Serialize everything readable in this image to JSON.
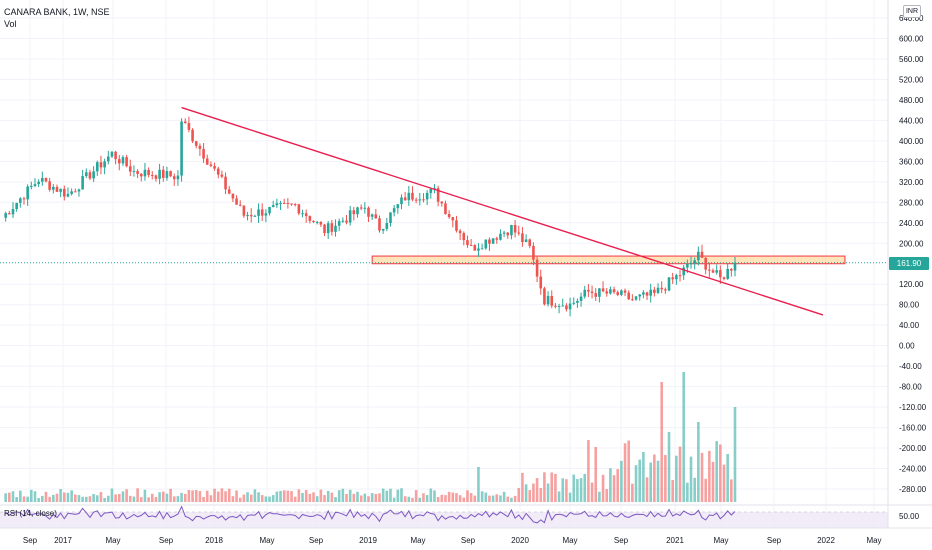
{
  "header": {
    "symbol_line": "CANARA BANK, 1W, NSE",
    "volume_label": "Vol"
  },
  "currency_badge": "INR",
  "current_price_label": "161.90",
  "rsi_label": "RSI (14, close)",
  "rsi_level_label": "50.00",
  "colors": {
    "up": "#26a69a",
    "down": "#ef5350",
    "trendline": "#e91e4d",
    "zone_fill": "#ffe0b2",
    "zone_border": "#f23645",
    "rsi_line": "#7e57c2",
    "rsi_band": "#ede7f6"
  },
  "chart_data": {
    "type": "candlestick",
    "title": "CANARA BANK, 1W, NSE",
    "x_tick_labels": [
      "Sep",
      "2017",
      "May",
      "Sep",
      "2018",
      "May",
      "Sep",
      "2019",
      "May",
      "Sep",
      "2020",
      "May",
      "Sep",
      "2021",
      "May",
      "Sep",
      "2022",
      "May"
    ],
    "y_tick_labels": [
      "640.00",
      "600.00",
      "560.00",
      "520.00",
      "480.00",
      "440.00",
      "400.00",
      "360.00",
      "320.00",
      "280.00",
      "240.00",
      "200.00",
      "120.00",
      "80.00",
      "40.00",
      "0.00",
      "-40.00",
      "-80.00",
      "-120.00",
      "-160.00",
      "-200.00",
      "-240.00",
      "-280.00"
    ],
    "y_tick_values": [
      640,
      600,
      560,
      520,
      480,
      440,
      400,
      360,
      320,
      280,
      240,
      200,
      120,
      80,
      40,
      0,
      -40,
      -80,
      -120,
      -160,
      -200,
      -240,
      -280
    ],
    "ylim": [
      -300,
      650
    ],
    "grid": true,
    "last_price": 161.9,
    "price_path_anchors": [
      {
        "week": 0,
        "close": 250
      },
      {
        "week": 10,
        "close": 325
      },
      {
        "week": 18,
        "close": 295
      },
      {
        "week": 30,
        "close": 375
      },
      {
        "week": 36,
        "close": 340
      },
      {
        "week": 48,
        "close": 330
      },
      {
        "week": 49,
        "close": 440
      },
      {
        "week": 60,
        "close": 320
      },
      {
        "week": 66,
        "close": 255
      },
      {
        "week": 80,
        "close": 275
      },
      {
        "week": 88,
        "close": 225
      },
      {
        "week": 99,
        "close": 270
      },
      {
        "week": 103,
        "close": 230
      },
      {
        "week": 110,
        "close": 290
      },
      {
        "week": 118,
        "close": 300
      },
      {
        "week": 128,
        "close": 190
      },
      {
        "week": 139,
        "close": 230
      },
      {
        "week": 144,
        "close": 190
      },
      {
        "week": 148,
        "close": 90
      },
      {
        "week": 155,
        "close": 80
      },
      {
        "week": 160,
        "close": 105
      },
      {
        "week": 168,
        "close": 100
      },
      {
        "week": 172,
        "close": 90
      },
      {
        "week": 178,
        "close": 100
      },
      {
        "week": 185,
        "close": 140
      },
      {
        "week": 190,
        "close": 175
      },
      {
        "week": 193,
        "close": 150
      },
      {
        "week": 196,
        "close": 130
      },
      {
        "week": 200,
        "close": 161.9
      }
    ],
    "trendline": {
      "start": {
        "week": 49,
        "price": 465
      },
      "end": {
        "week": 224,
        "price": 60
      }
    },
    "resistance_zone": {
      "from_week": 101,
      "to_week": 230,
      "low": 160,
      "high": 175
    },
    "volume_spikes": [
      {
        "week": 130,
        "volume": 35
      },
      {
        "week": 160,
        "volume": 62
      },
      {
        "week": 162,
        "volume": 55
      },
      {
        "week": 175,
        "volume": 50
      },
      {
        "week": 180,
        "volume": 120
      },
      {
        "week": 182,
        "volume": 70
      },
      {
        "week": 186,
        "volume": 130
      },
      {
        "week": 190,
        "volume": 80
      },
      {
        "week": 198,
        "volume": 48
      },
      {
        "week": 200,
        "volume": 95
      }
    ],
    "rsi": {
      "period": 14,
      "level": 50
    }
  }
}
